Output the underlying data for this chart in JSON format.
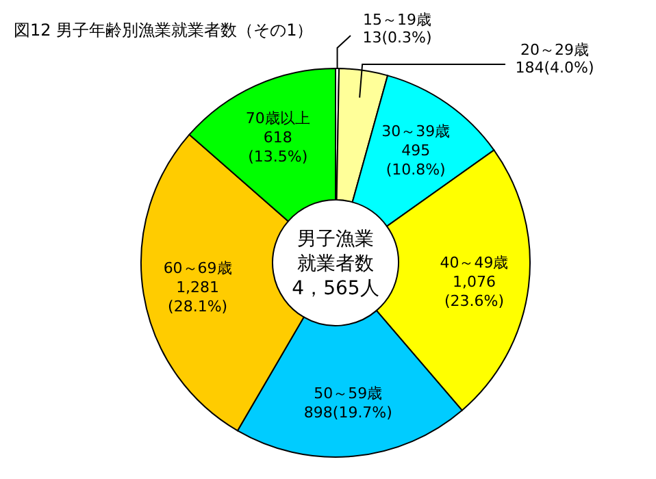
{
  "chart_data": {
    "type": "donut",
    "title": "図12  男子年齢別漁業就業者数（その1）",
    "categories": [
      "15～19歳",
      "20～29歳",
      "30～39歳",
      "40～49歳",
      "50～59歳",
      "60～69歳",
      "70歳以上"
    ],
    "values": [
      13,
      184,
      495,
      1076,
      898,
      1281,
      618
    ],
    "value_labels": [
      "13(0.3%)",
      "184(4.0%)",
      "495\n(10.8%)",
      "1,076\n(23.6%)",
      "898(19.7%)",
      "1,281\n(28.1%)",
      "618\n(13.5%)"
    ],
    "colors": [
      "#ffffff",
      "#ffff99",
      "#00ffff",
      "#ffff00",
      "#00ccff",
      "#ffcc00",
      "#00ff00"
    ],
    "annotations": [
      "男子漁業",
      "就業者数",
      "4，565人"
    ]
  }
}
